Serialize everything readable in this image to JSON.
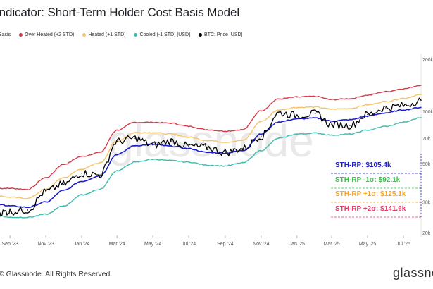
{
  "header": {
    "title": "Indicator: Short-Term Holder Cost Basis Model"
  },
  "legend": [
    {
      "label": "Basis",
      "color": "#1c1ccc"
    },
    {
      "label": "Over Heated (+2 STD)",
      "color": "#d63a4a"
    },
    {
      "label": "Heated (+1 STD)",
      "color": "#f5c26b"
    },
    {
      "label": "Cooled (-1 STD) [USD]",
      "color": "#3cbcae"
    },
    {
      "label": "BTC: Price [USD]",
      "color": "#000000"
    }
  ],
  "annotations": [
    {
      "label": "STH-RP: $105.4k",
      "color": "#1c1ccc"
    },
    {
      "label": "STH-RP -1σ: $92.1k",
      "color": "#35c445"
    },
    {
      "label": "STH-RP +1σ: $125.1k",
      "color": "#f5a623"
    },
    {
      "label": "STH-RP +2σ: $141.6k",
      "color": "#e8386a"
    }
  ],
  "footer": {
    "copyright": "© Glassnode. All Rights Reserved.",
    "brand": "glassnode"
  },
  "watermark": "glassnode",
  "chart_data": {
    "type": "line",
    "title": "Indicator: Short-Term Holder Cost Basis Model",
    "xlabel": "",
    "ylabel": "",
    "yscale": "log",
    "xlim": [
      "2023-08-15",
      "2025-07-31"
    ],
    "ylim": [
      20000,
      200000
    ],
    "x_ticks": [
      {
        "label": "Sep '23",
        "date": "2023-09-01"
      },
      {
        "label": "Nov '23",
        "date": "2023-11-01"
      },
      {
        "label": "Jan '24",
        "date": "2024-01-01"
      },
      {
        "label": "Mar '24",
        "date": "2024-03-01"
      },
      {
        "label": "May '24",
        "date": "2024-05-01"
      },
      {
        "label": "Jul '24",
        "date": "2024-07-01"
      },
      {
        "label": "Sep '24",
        "date": "2024-09-01"
      },
      {
        "label": "Nov '24",
        "date": "2024-11-01"
      },
      {
        "label": "Jan '25",
        "date": "2025-01-01"
      },
      {
        "label": "Mar '25",
        "date": "2025-03-01"
      },
      {
        "label": "May '25",
        "date": "2025-05-01"
      },
      {
        "label": "Jul '25",
        "date": "2025-07-01"
      }
    ],
    "y_ticks": [
      {
        "label": "200k",
        "value": 200000
      },
      {
        "label": "100k",
        "value": 100000
      },
      {
        "label": "70k",
        "value": 70000
      },
      {
        "label": "50k",
        "value": 50000
      },
      {
        "label": "30k",
        "value": 30000
      },
      {
        "label": "20k",
        "value": 20000
      }
    ],
    "x": [
      "2023-08-15",
      "2023-09-01",
      "2023-10-01",
      "2023-11-01",
      "2023-12-01",
      "2024-01-01",
      "2024-02-01",
      "2024-03-01",
      "2024-04-01",
      "2024-05-01",
      "2024-06-01",
      "2024-07-01",
      "2024-08-01",
      "2024-09-01",
      "2024-10-01",
      "2024-11-01",
      "2024-12-01",
      "2025-01-01",
      "2025-02-01",
      "2025-03-01",
      "2025-04-01",
      "2025-05-01",
      "2025-06-01",
      "2025-07-01",
      "2025-07-31"
    ],
    "series": [
      {
        "name": "Over Heated (+2 STD)",
        "color": "#d63a4a",
        "width": 1.4,
        "values": [
          36000,
          36000,
          35500,
          41500,
          49500,
          55000,
          58000,
          78000,
          86500,
          86500,
          85500,
          82000,
          78500,
          77000,
          78500,
          101000,
          118000,
          121000,
          122000,
          117000,
          118500,
          124000,
          130000,
          135000,
          141600
        ]
      },
      {
        "name": "Heated (+1 STD)",
        "color": "#f5c26b",
        "width": 1.4,
        "values": [
          32500,
          32000,
          31500,
          35500,
          41500,
          46500,
          50500,
          67500,
          75500,
          75500,
          74000,
          71000,
          68000,
          66500,
          68000,
          87500,
          102000,
          105500,
          106000,
          103000,
          104000,
          109000,
          114000,
          119000,
          125100
        ]
      },
      {
        "name": "Basis",
        "color": "#1c1ccc",
        "width": 1.6,
        "values": [
          29000,
          28500,
          28000,
          30000,
          35000,
          39500,
          42500,
          56500,
          63500,
          64500,
          63000,
          61000,
          58000,
          57500,
          59500,
          74000,
          87000,
          90500,
          91500,
          88000,
          89500,
          94000,
          98000,
          102000,
          105400
        ]
      },
      {
        "name": "Cooled (-1 STD) [USD]",
        "color": "#3cbcae",
        "width": 1.4,
        "values": [
          25000,
          24500,
          24500,
          25500,
          28500,
          33000,
          35500,
          45500,
          51000,
          53000,
          52000,
          51000,
          49000,
          48500,
          50500,
          59500,
          70000,
          74000,
          75000,
          73000,
          74000,
          78000,
          82000,
          86500,
          92100
        ]
      },
      {
        "name": "BTC: Price [USD]",
        "color": "#000000",
        "width": 1.3,
        "values": [
          26000,
          26500,
          27000,
          34500,
          38000,
          44000,
          43000,
          67000,
          70000,
          64000,
          67500,
          63000,
          62000,
          58000,
          61000,
          72000,
          98000,
          95000,
          97000,
          84000,
          83000,
          96000,
          105000,
          108000,
          116000
        ]
      }
    ]
  }
}
